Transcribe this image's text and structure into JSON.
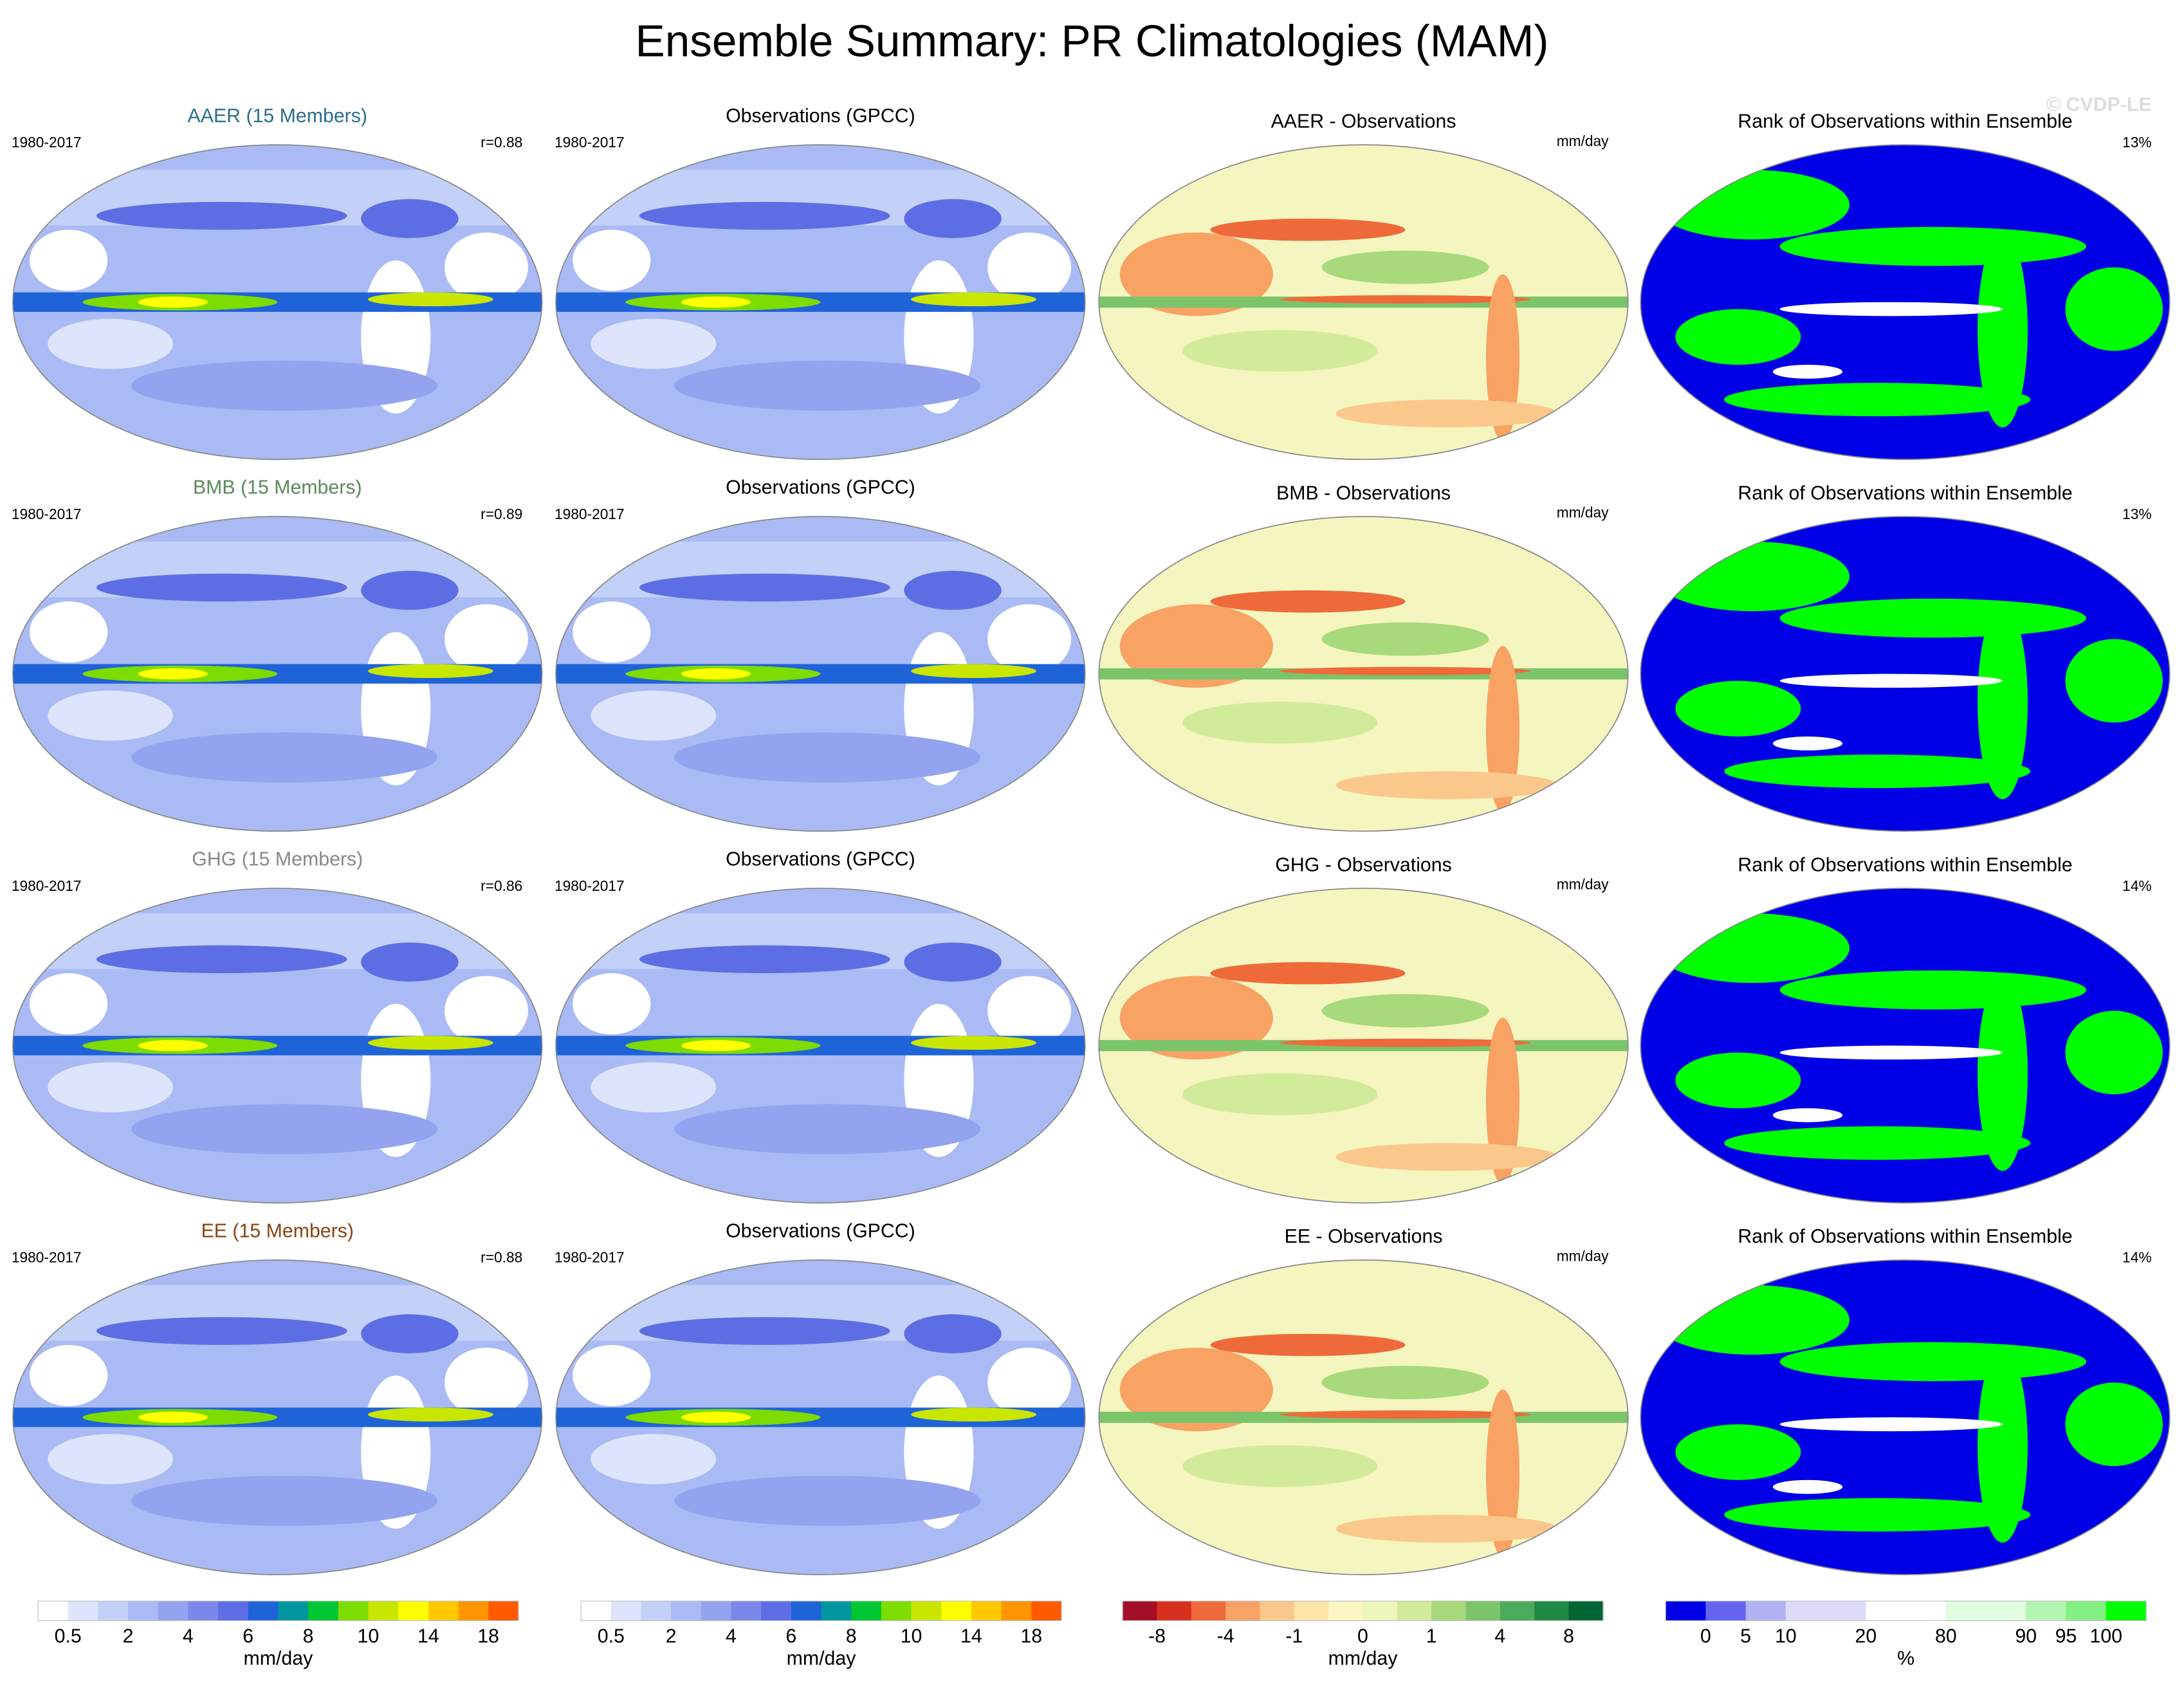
{
  "title": "Ensemble Summary: PR Climatologies (MAM)",
  "watermark": "© CVDP-LE",
  "rows": [
    {
      "model": {
        "title": "AAER (15 Members)",
        "title_color": "#2a6f8f",
        "period": "1980-2017",
        "r": "r=0.88"
      },
      "obs": {
        "title": "Observations (GPCC)",
        "period": "1980-2017"
      },
      "diff": {
        "title": "AAER - Observations",
        "units": "mm/day"
      },
      "rank": {
        "title": "Rank of Observations within Ensemble",
        "pct": "13%"
      }
    },
    {
      "model": {
        "title": "BMB (15 Members)",
        "title_color": "#5a8a5a",
        "period": "1980-2017",
        "r": "r=0.89"
      },
      "obs": {
        "title": "Observations (GPCC)",
        "period": "1980-2017"
      },
      "diff": {
        "title": "BMB - Observations",
        "units": "mm/day"
      },
      "rank": {
        "title": "Rank of Observations within Ensemble",
        "pct": "13%"
      }
    },
    {
      "model": {
        "title": "GHG (15 Members)",
        "title_color": "#888888",
        "period": "1980-2017",
        "r": "r=0.86"
      },
      "obs": {
        "title": "Observations (GPCC)",
        "period": "1980-2017"
      },
      "diff": {
        "title": "GHG - Observations",
        "units": "mm/day"
      },
      "rank": {
        "title": "Rank of Observations within Ensemble",
        "pct": "14%"
      }
    },
    {
      "model": {
        "title": "EE (15 Members)",
        "title_color": "#8b4513",
        "period": "1980-2017",
        "r": "r=0.88"
      },
      "obs": {
        "title": "Observations (GPCC)",
        "period": "1980-2017"
      },
      "diff": {
        "title": "EE - Observations",
        "units": "mm/day"
      },
      "rank": {
        "title": "Rank of Observations within Ensemble",
        "pct": "14%"
      }
    }
  ],
  "colorbars": [
    {
      "colors": [
        "#ffffff",
        "#dde4fb",
        "#c3d0f8",
        "#aabaf4",
        "#93a3f0",
        "#7b88ea",
        "#5d6ee4",
        "#1e63d8",
        "#0096a0",
        "#00c832",
        "#7ddc00",
        "#c8e600",
        "#ffff00",
        "#ffc800",
        "#ff9600",
        "#ff5a00"
      ],
      "labels": [
        0.5,
        null,
        2,
        null,
        4,
        null,
        6,
        null,
        8,
        null,
        10,
        null,
        14,
        null,
        18
      ],
      "units": "mm/day"
    },
    {
      "colors": [
        "#ffffff",
        "#dde4fb",
        "#c3d0f8",
        "#aabaf4",
        "#93a3f0",
        "#7b88ea",
        "#5d6ee4",
        "#1e63d8",
        "#0096a0",
        "#00c832",
        "#7ddc00",
        "#c8e600",
        "#ffff00",
        "#ffc800",
        "#ff9600",
        "#ff5a00"
      ],
      "labels": [
        0.5,
        null,
        2,
        null,
        4,
        null,
        6,
        null,
        8,
        null,
        10,
        null,
        14,
        null,
        18
      ],
      "units": "mm/day"
    },
    {
      "colors": [
        "#a50f26",
        "#d7301f",
        "#ef6a3a",
        "#f8a264",
        "#fbc88c",
        "#fde6a8",
        "#fdf6c4",
        "#eef6bc",
        "#d2eb9a",
        "#a8d97a",
        "#7cc46a",
        "#4aab5a",
        "#1f8a45",
        "#006634"
      ],
      "labels": [
        -8,
        null,
        -4,
        null,
        -1,
        null,
        0,
        null,
        1,
        null,
        4,
        null,
        8
      ],
      "units": "mm/day"
    },
    {
      "colors": [
        "#0000e6",
        "#6464f0",
        "#b2b2f4",
        "#dcdcf8",
        "#dcdcf8",
        "#ffffff",
        "#ffffff",
        "#e0fde0",
        "#e0fde0",
        "#b4f5b4",
        "#82f082",
        "#00ff00"
      ],
      "labels": [
        0,
        5,
        10,
        null,
        20,
        null,
        80,
        null,
        90,
        95,
        100
      ],
      "units": "%"
    }
  ]
}
